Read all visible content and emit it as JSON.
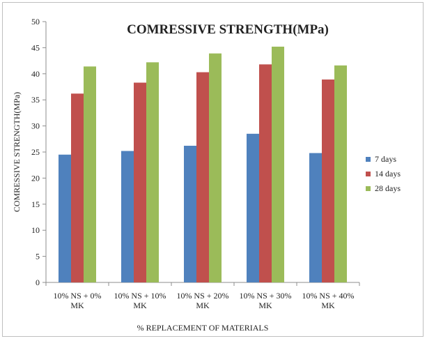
{
  "chart_data": {
    "type": "bar",
    "title": "COMRESSIVE STRENGTH(MPa)",
    "xlabel": "% REPLACEMENT OF MATERIALS",
    "ylabel": "COMRESSIVE STRENGTH(MPa)",
    "ylim": [
      0,
      50
    ],
    "yticks": [
      "0",
      "5",
      "10",
      "15",
      "20",
      "25",
      "30",
      "35",
      "40",
      "45",
      "50"
    ],
    "categories": [
      [
        "10% NS + 0%",
        "MK"
      ],
      [
        "10%  NS + 10%",
        "MK"
      ],
      [
        "10% NS + 20%",
        "MK"
      ],
      [
        "10% NS + 30%",
        "MK"
      ],
      [
        "10% NS + 40%",
        "MK"
      ]
    ],
    "series": [
      {
        "name": "7 days",
        "color": "#4f81bd",
        "values": [
          24.5,
          25.2,
          26.2,
          28.5,
          24.8
        ]
      },
      {
        "name": "14 days",
        "color": "#c0504d",
        "values": [
          36.2,
          38.3,
          40.3,
          41.8,
          38.9
        ]
      },
      {
        "name": "28 days",
        "color": "#9bbb59",
        "values": [
          41.4,
          42.2,
          43.9,
          45.2,
          41.6
        ]
      }
    ],
    "grid": false,
    "legend_position": "right"
  }
}
